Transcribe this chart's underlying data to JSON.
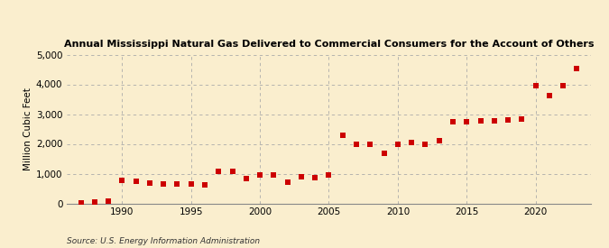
{
  "title": "Annual Mississippi Natural Gas Delivered to Commercial Consumers for the Account of Others",
  "ylabel": "Million Cubic Feet",
  "source": "Source: U.S. Energy Information Administration",
  "background_color": "#faeece",
  "marker_color": "#cc0000",
  "xlim": [
    1986,
    2024
  ],
  "ylim": [
    0,
    5000
  ],
  "yticks": [
    0,
    1000,
    2000,
    3000,
    4000,
    5000
  ],
  "xticks": [
    1990,
    1995,
    2000,
    2005,
    2010,
    2015,
    2020
  ],
  "years": [
    1987,
    1988,
    1989,
    1990,
    1991,
    1992,
    1993,
    1994,
    1995,
    1996,
    1997,
    1998,
    1999,
    2000,
    2001,
    2002,
    2003,
    2004,
    2005,
    2006,
    2007,
    2008,
    2009,
    2010,
    2011,
    2012,
    2013,
    2014,
    2015,
    2016,
    2017,
    2018,
    2019,
    2020,
    2021,
    2022,
    2023
  ],
  "values": [
    30,
    50,
    80,
    770,
    730,
    680,
    660,
    650,
    640,
    610,
    1090,
    1080,
    840,
    950,
    940,
    720,
    900,
    870,
    950,
    2300,
    1970,
    1980,
    1680,
    2000,
    2060,
    2000,
    2120,
    2730,
    2740,
    2780,
    2770,
    2810,
    2830,
    3960,
    3630,
    3950,
    4540
  ],
  "title_fontsize": 8.0,
  "ylabel_fontsize": 7.5,
  "tick_fontsize": 7.5,
  "source_fontsize": 6.5,
  "marker_size": 14
}
